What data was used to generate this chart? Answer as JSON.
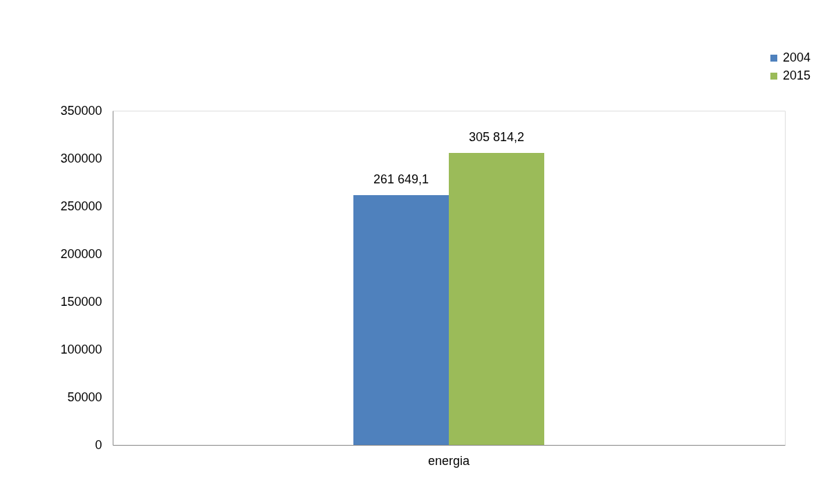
{
  "chart_data": {
    "type": "bar",
    "categories": [
      "energia"
    ],
    "series": [
      {
        "name": "2004",
        "color": "#4f81bd",
        "values": [
          261649.1
        ],
        "value_labels": [
          "261 649,1"
        ]
      },
      {
        "name": "2015",
        "color": "#9bbb59",
        "values": [
          305814.2
        ],
        "value_labels": [
          "305 814,2"
        ]
      }
    ],
    "ylim": [
      0,
      350000
    ],
    "yticks": [
      0,
      50000,
      100000,
      150000,
      200000,
      250000,
      300000,
      350000
    ],
    "grid": false,
    "legend": "top right"
  }
}
